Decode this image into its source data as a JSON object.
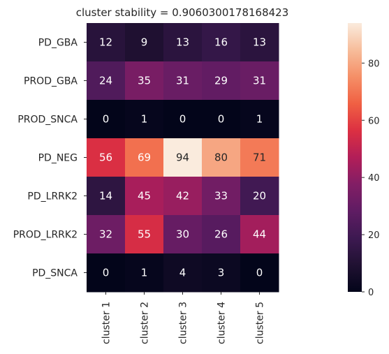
{
  "chart_data": {
    "type": "heatmap",
    "title": "cluster stability = 0.9060300178168423",
    "rows": [
      "PD_GBA",
      "PROD_GBA",
      "PROD_SNCA",
      "PD_NEG",
      "PD_LRRK2",
      "PROD_LRRK2",
      "PD_SNCA"
    ],
    "columns": [
      "cluster 1",
      "cluster 2",
      "cluster 3",
      "cluster 4",
      "cluster 5"
    ],
    "values": [
      [
        12,
        9,
        13,
        16,
        13
      ],
      [
        24,
        35,
        31,
        29,
        31
      ],
      [
        0,
        1,
        0,
        0,
        1
      ],
      [
        56,
        69,
        94,
        80,
        71
      ],
      [
        14,
        45,
        42,
        33,
        20
      ],
      [
        32,
        55,
        30,
        26,
        44
      ],
      [
        0,
        1,
        4,
        3,
        0
      ]
    ],
    "vmin": 0,
    "vmax": 94,
    "colormap": "rocket",
    "annotations": true,
    "colorbar": {
      "ticks": [
        0,
        20,
        40,
        60,
        80
      ],
      "tick_labels": [
        "0",
        "20",
        "40",
        "60",
        "80"
      ]
    }
  }
}
